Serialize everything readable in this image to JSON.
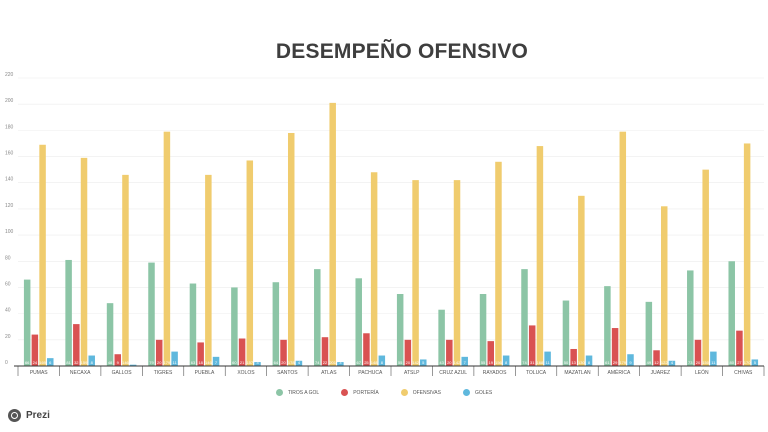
{
  "chart_data": {
    "type": "bar",
    "title": "DESEMPEÑO OFENSIVO",
    "categories": [
      "PUMAS",
      "NECAXA",
      "GALLOS",
      "TIGRES",
      "PUEBLA",
      "XOLOS",
      "SANTOS",
      "ATLAS",
      "PACHUCA",
      "ATSLP",
      "CRUZ AZUL",
      "RAYADOS",
      "TOLUCA",
      "MAZATLAN",
      "AMÉRICA",
      "JUAREZ",
      "LEÓN",
      "CHIVAS"
    ],
    "series": [
      {
        "name": "TIROS A GOL",
        "color": "#8cc5a6",
        "values": [
          66,
          81,
          48,
          79,
          63,
          60,
          64,
          74,
          67,
          55,
          43,
          55,
          74,
          50,
          61,
          49,
          73,
          80
        ]
      },
      {
        "name": "PORTERÍA",
        "color": "#d95252",
        "values": [
          24,
          32,
          9,
          20,
          18,
          21,
          20,
          22,
          25,
          20,
          20,
          19,
          31,
          13,
          29,
          12,
          20,
          27
        ]
      },
      {
        "name": "OFENSIVAS",
        "color": "#f0cc6e",
        "values": [
          169,
          159,
          146,
          179,
          146,
          157,
          178,
          201,
          148,
          142,
          142,
          156,
          168,
          130,
          179,
          122,
          150,
          170
        ]
      },
      {
        "name": "GOLES",
        "color": "#5fb8dd",
        "values": [
          6,
          8,
          1,
          11,
          7,
          3,
          4,
          3,
          8,
          5,
          7,
          8,
          11,
          8,
          9,
          4,
          11,
          5
        ]
      }
    ],
    "ylim": [
      0,
      220
    ],
    "yticks": [
      0,
      20,
      40,
      60,
      80,
      100,
      120,
      140,
      160,
      180,
      200,
      220
    ],
    "grid": true,
    "legend": "bottom"
  },
  "brand": {
    "name": "Prezi"
  }
}
